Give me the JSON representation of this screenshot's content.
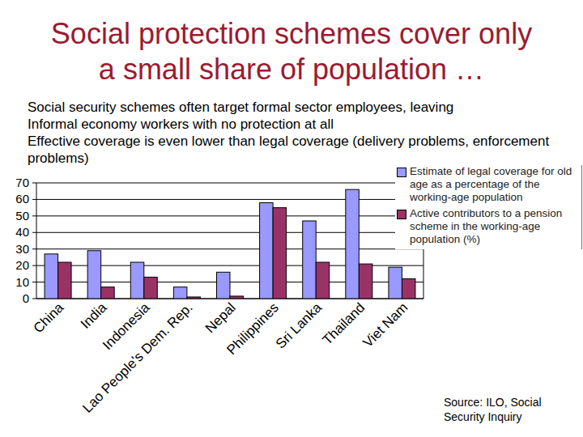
{
  "chart_data": {
    "type": "bar",
    "title": "Social protection schemes cover only a small share of population …",
    "annotations": [
      "Social security schemes often target formal sector employees, leaving",
      "Informal economy workers with no protection at all",
      "Effective coverage is even lower than legal coverage (delivery problems, enforcement problems)",
      "Source: ILO, Social Security Inquiry"
    ],
    "categories": [
      "China",
      "India",
      "Indonesia",
      "Lao People's Dem. Rep.",
      "Nepal",
      "Philippines",
      "Sri Lanka",
      "Thailand",
      "Viet Nam"
    ],
    "series": [
      {
        "name": "Estimate of legal coverage for old age as a percentage of the working-age population",
        "color": "#9999ff",
        "values": [
          27,
          29,
          22,
          7,
          16,
          58,
          47,
          66,
          19
        ]
      },
      {
        "name": "Active contributors to a pension scheme in the working-age population (%)",
        "color": "#993366",
        "values": [
          22,
          7,
          13,
          1,
          1.5,
          55,
          22,
          21,
          12
        ]
      }
    ],
    "ylim": [
      0,
      70
    ],
    "yticks": [
      0,
      10,
      20,
      30,
      40,
      50,
      60,
      70
    ],
    "grid": true,
    "legend": "upper right"
  }
}
